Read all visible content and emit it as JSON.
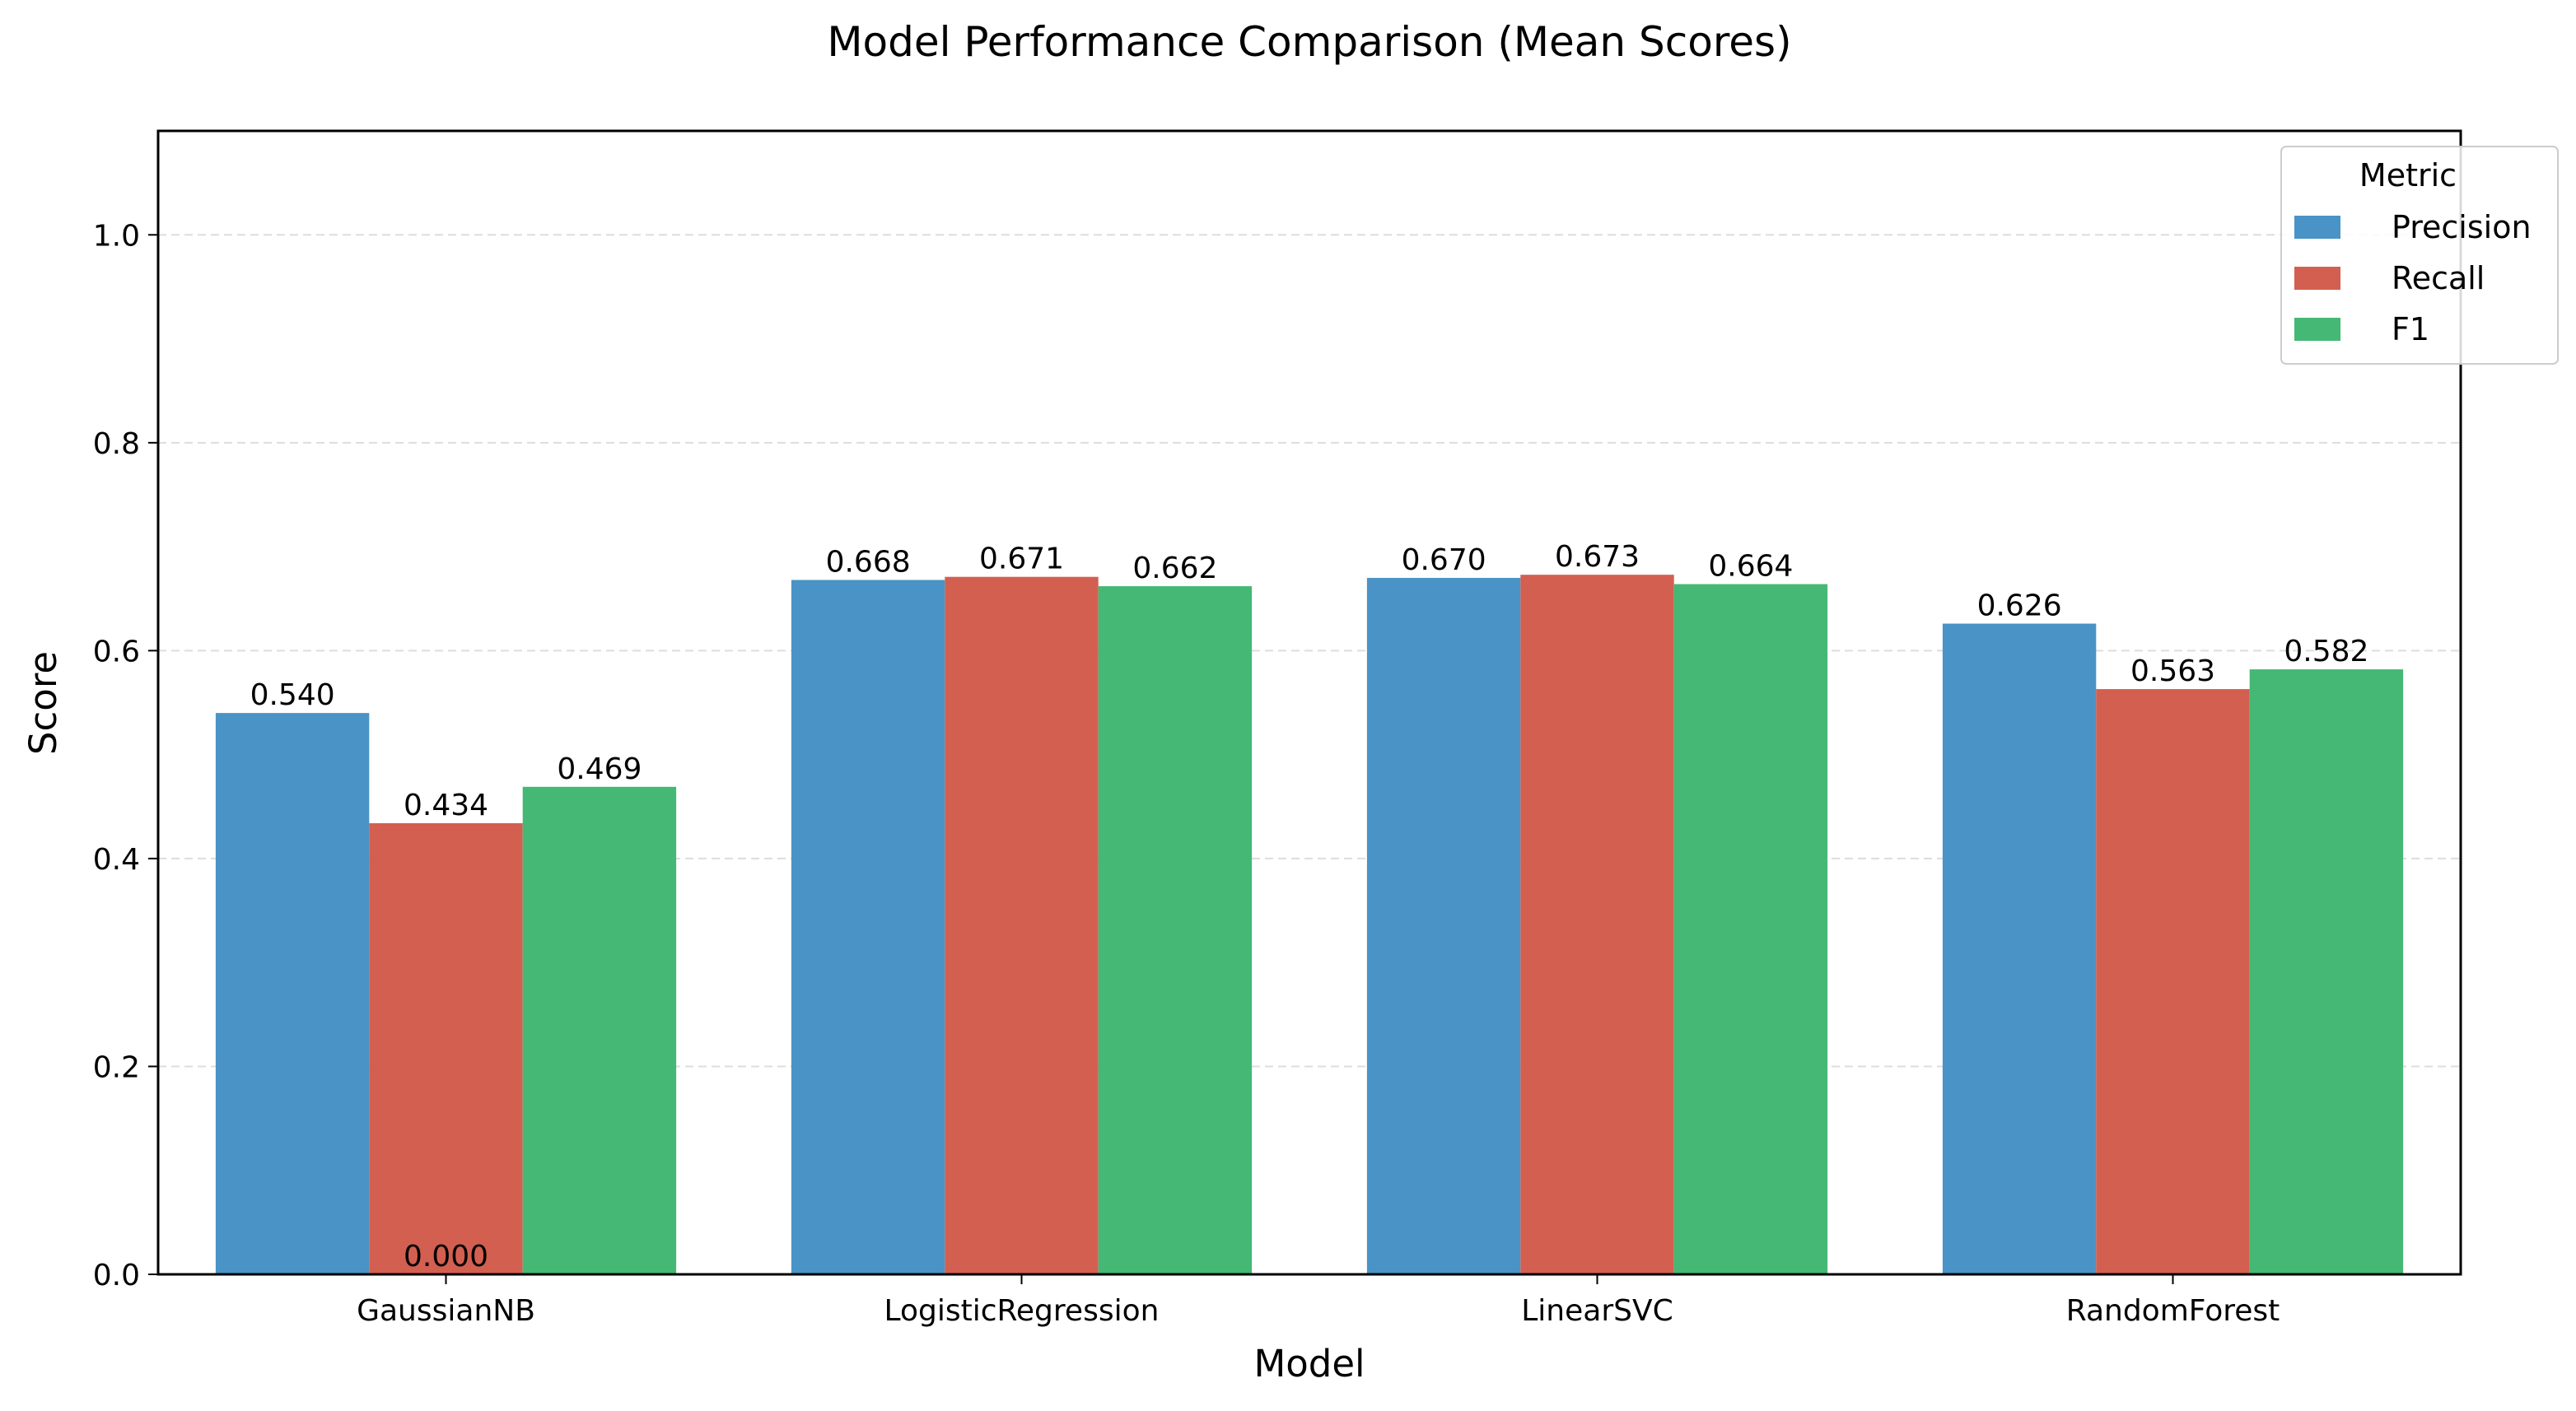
{
  "chart_data": {
    "type": "bar",
    "title": "Model Performance Comparison (Mean Scores)",
    "xlabel": "Model",
    "ylabel": "Score",
    "ylim": [
      0,
      1.1
    ],
    "yticks": [
      0.0,
      0.2,
      0.4,
      0.6,
      0.8,
      1.0
    ],
    "ytick_labels": [
      "0.0",
      "0.2",
      "0.4",
      "0.6",
      "0.8",
      "1.0"
    ],
    "grid": "y-dashed",
    "categories": [
      "GaussianNB",
      "LogisticRegression",
      "LinearSVC",
      "RandomForest"
    ],
    "series": [
      {
        "name": "Precision",
        "color": "#4a93c6",
        "values": [
          0.54,
          0.668,
          0.67,
          0.626
        ],
        "labels": [
          "0.540",
          "0.668",
          "0.670",
          "0.626"
        ]
      },
      {
        "name": "Recall",
        "color": "#d35f50",
        "values": [
          0.434,
          0.671,
          0.673,
          0.563
        ],
        "labels": [
          "0.434",
          "0.671",
          "0.673",
          "0.563"
        ]
      },
      {
        "name": "F1",
        "color": "#44b874",
        "values": [
          0.469,
          0.662,
          0.664,
          0.582
        ],
        "labels": [
          "0.469",
          "0.662",
          "0.664",
          "0.582"
        ]
      }
    ],
    "extra_annotations": [
      {
        "text": "0.000",
        "x_category": "GaussianNB",
        "y": 0.0
      }
    ],
    "legend": {
      "title": "Metric",
      "placement": "top-right"
    }
  }
}
